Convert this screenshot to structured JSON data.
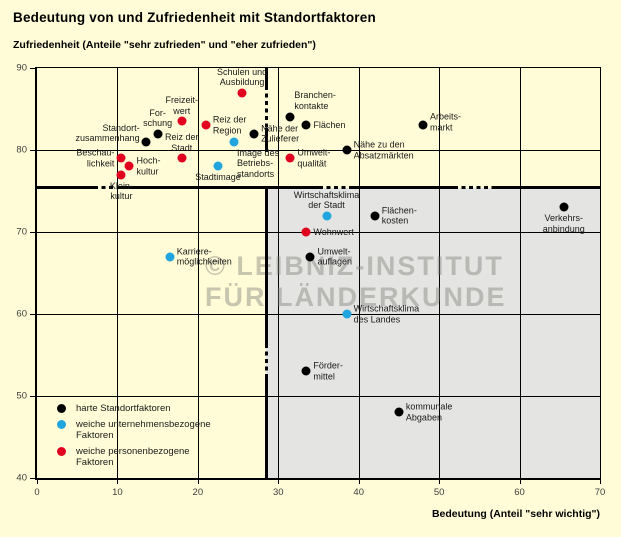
{
  "title": "Bedeutung von und Zufriedenheit mit Standortfaktoren",
  "y_axis_title": "Zufriedenheit (Anteile \"sehr zufrieden\" und \"eher zufrieden\")",
  "x_axis_title": "Bedeutung (Anteil \"sehr wichtig\")",
  "watermark": "© LEIBNIZ-INSTITUT\nFÜR LÄNDERKUNDE",
  "colors": {
    "background": "#FFFCD7",
    "shaded_quadrant": "#E4E4E2",
    "hard_factors": "#000000",
    "soft_company_factors": "#21A5DE",
    "soft_personal_factors": "#E2001F"
  },
  "legend": [
    {
      "color": "#000000",
      "label": "harte Standortfaktoren"
    },
    {
      "color": "#21A5DE",
      "label": "weiche unternehmensbezogene\nFaktoren"
    },
    {
      "color": "#E2001F",
      "label": "weiche personenbezogene\nFaktoren"
    }
  ],
  "chart_data": {
    "type": "scatter",
    "title": "Bedeutung von und Zufriedenheit mit Standortfaktoren",
    "xlabel": "Bedeutung (Anteil \"sehr wichtig\")",
    "ylabel": "Zufriedenheit (Anteile \"sehr zufrieden\" und \"eher zufrieden\")",
    "xlim": [
      0,
      70
    ],
    "ylim": [
      40,
      90
    ],
    "x_ticks": [
      0,
      10,
      20,
      30,
      40,
      50,
      60,
      70
    ],
    "y_ticks": [
      40,
      50,
      60,
      70,
      80,
      90
    ],
    "grid": true,
    "legend_position": "bottom-left",
    "quadrant_divider": {
      "x": 28.5,
      "y": 75.4
    },
    "shaded_quadrant": "bottom-right (hohe Bedeutung, geringe Zufriedenheit)",
    "series": [
      {
        "name": "harte Standortfaktoren",
        "color": "#000000",
        "points": [
          {
            "label": "Standort-\nzusammenhang",
            "x": 13.5,
            "y": 81,
            "pos": "left-up"
          },
          {
            "label": "For-\nschung",
            "x": 15,
            "y": 82,
            "pos": "above"
          },
          {
            "label": "Nähe der\nZulieferer",
            "x": 27,
            "y": 82,
            "pos": "right"
          },
          {
            "label": "Branchen-\nkontakte",
            "x": 31.5,
            "y": 84,
            "pos": "above-right"
          },
          {
            "label": "Flächen",
            "x": 33.5,
            "y": 83,
            "pos": "right"
          },
          {
            "label": "Nähe zu den\nAbsatzmärkten",
            "x": 38.5,
            "y": 80,
            "pos": "right"
          },
          {
            "label": "Arbeits-\nmarkt",
            "x": 48,
            "y": 83,
            "pos": "right-up"
          },
          {
            "label": "Flächen-\nkosten",
            "x": 42,
            "y": 72,
            "pos": "right"
          },
          {
            "label": "Umwelt-\nauflagen",
            "x": 34,
            "y": 67,
            "pos": "right"
          },
          {
            "label": "Förder-\nmittel",
            "x": 33.5,
            "y": 53,
            "pos": "right"
          },
          {
            "label": "kommunale\nAbgaben",
            "x": 45,
            "y": 48,
            "pos": "right"
          },
          {
            "label": "Verkehrs-\nanbindung",
            "x": 65.5,
            "y": 73,
            "pos": "below"
          }
        ]
      },
      {
        "name": "weiche unternehmensbezogene Faktoren",
        "color": "#21A5DE",
        "points": [
          {
            "label": "Stadtimage",
            "x": 22.5,
            "y": 78,
            "pos": "below"
          },
          {
            "label": "Image des\nBetriebs-\nstandorts",
            "x": 24.5,
            "y": 81,
            "pos": "below-right"
          },
          {
            "label": "Karriere-\nmöglichkeiten",
            "x": 16.5,
            "y": 67,
            "pos": "right"
          },
          {
            "label": "Wirtschaftsklima\nder Stadt",
            "x": 36,
            "y": 72,
            "pos": "above"
          },
          {
            "label": "Wirtschaftsklima\ndes Landes",
            "x": 38.5,
            "y": 60,
            "pos": "right"
          }
        ]
      },
      {
        "name": "weiche personenbezogene Faktoren",
        "color": "#E2001F",
        "points": [
          {
            "label": "Freizeit-\nwert",
            "x": 18,
            "y": 83.5,
            "pos": "above"
          },
          {
            "label": "Reiz der\nRegion",
            "x": 21,
            "y": 83,
            "pos": "right"
          },
          {
            "label": "Schulen und\nAusbildung",
            "x": 25.5,
            "y": 87,
            "pos": "above"
          },
          {
            "label": "Reiz der\nStadt",
            "x": 18,
            "y": 79,
            "pos": "above"
          },
          {
            "label": "Beschau-\nlichkeit",
            "x": 10.5,
            "y": 79,
            "pos": "left"
          },
          {
            "label": "Hoch-\nkultur",
            "x": 11.5,
            "y": 78,
            "pos": "right"
          },
          {
            "label": "Klein-\nkultur",
            "x": 10.5,
            "y": 77,
            "pos": "below"
          },
          {
            "label": "Umwelt-\nqualität",
            "x": 31.5,
            "y": 79,
            "pos": "right"
          },
          {
            "label": "Wohnwert",
            "x": 33.5,
            "y": 70,
            "pos": "right"
          }
        ]
      }
    ]
  }
}
